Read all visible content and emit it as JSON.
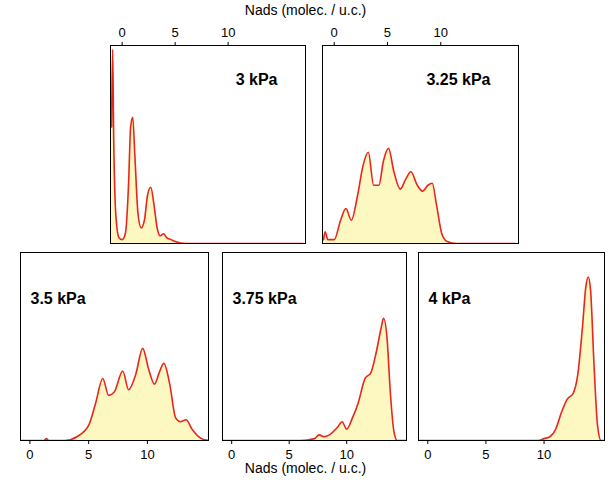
{
  "chart_data": [
    {
      "type": "area",
      "title": "3 kPa",
      "xlabel": "Nads (molec. / u.c.)",
      "x": [
        -1,
        -0.9,
        -0.8,
        -0.6,
        -0.3,
        0,
        0.3,
        0.6,
        0.8,
        1.0,
        1.2,
        1.5,
        1.8,
        2.1,
        2.4,
        2.7,
        3.0,
        3.3,
        3.6,
        3.9,
        4.2,
        4.6,
        5,
        6,
        8,
        17
      ],
      "values": [
        0.6,
        1.0,
        0.55,
        0.15,
        0.03,
        0.02,
        0.05,
        0.3,
        0.6,
        0.65,
        0.45,
        0.15,
        0.08,
        0.12,
        0.25,
        0.29,
        0.2,
        0.08,
        0.04,
        0.05,
        0.03,
        0.02,
        0.01,
        0,
        0,
        0
      ],
      "xlim": [
        -1.1,
        17.3
      ],
      "xticks": [
        0,
        5,
        10
      ],
      "ylim": [
        0,
        1.02
      ],
      "tick_labels": "x",
      "colors": [
        "#e8261c",
        "#fdf8c2"
      ]
    },
    {
      "type": "area",
      "title": "3.25 kPa",
      "x": [
        -1,
        -0.85,
        -0.6,
        0,
        0.6,
        1.1,
        1.6,
        2.2,
        2.7,
        3.2,
        3.7,
        4.2,
        4.6,
        5.1,
        5.6,
        6.2,
        6.7,
        7.2,
        7.8,
        8.3,
        8.8,
        9.2,
        9.6,
        10.1,
        10.6,
        11.5,
        17
      ],
      "values": [
        0.02,
        0.06,
        0.02,
        0.02,
        0.12,
        0.18,
        0.12,
        0.25,
        0.4,
        0.47,
        0.3,
        0.3,
        0.42,
        0.49,
        0.37,
        0.28,
        0.33,
        0.37,
        0.3,
        0.27,
        0.3,
        0.31,
        0.2,
        0.05,
        0.01,
        0,
        0
      ],
      "xlim": [
        -1.1,
        17.3
      ],
      "xticks": [
        0,
        5,
        10
      ],
      "ylim": [
        0,
        1.02
      ],
      "tick_labels": "x",
      "colors": [
        "#e8261c",
        "#fdf8c2"
      ]
    },
    {
      "type": "area",
      "title": "3.5 kPa",
      "xlabel": "Nads (molec. / u.c.)",
      "x": [
        -0.8,
        1.2,
        1.4,
        1.6,
        3,
        4,
        5,
        5.6,
        6.2,
        6.7,
        7.2,
        7.9,
        8.4,
        9.0,
        9.6,
        10.1,
        10.6,
        11.0,
        11.4,
        11.9,
        12.4,
        12.8,
        13.3,
        13.8,
        14.6,
        15.2
      ],
      "values": [
        0,
        0,
        0.01,
        0,
        0,
        0.02,
        0.08,
        0.2,
        0.33,
        0.24,
        0.26,
        0.37,
        0.27,
        0.35,
        0.49,
        0.38,
        0.3,
        0.36,
        0.41,
        0.3,
        0.12,
        0.1,
        0.11,
        0.06,
        0.01,
        0
      ],
      "xlim": [
        -0.8,
        15.2
      ],
      "xticks": [
        0,
        5,
        10
      ],
      "ylim": [
        0,
        1
      ],
      "tick_labels": "x",
      "colors": [
        "#e8261c",
        "#fdf8c2"
      ]
    },
    {
      "type": "area",
      "title": "3.75 kPa",
      "x": [
        -0.8,
        6,
        7.2,
        7.6,
        8.0,
        8.5,
        9.2,
        9.6,
        10.0,
        10.5,
        11,
        11.6,
        12.1,
        12.5,
        13.0,
        13.2,
        13.5,
        13.8,
        14.1,
        14.4,
        15.2
      ],
      "values": [
        0,
        0,
        0.01,
        0.03,
        0.02,
        0.03,
        0.07,
        0.1,
        0.06,
        0.12,
        0.2,
        0.33,
        0.36,
        0.45,
        0.6,
        0.65,
        0.55,
        0.25,
        0.05,
        0,
        0
      ],
      "xlim": [
        -0.8,
        15.2
      ],
      "xticks": [
        0,
        5,
        10
      ],
      "ylim": [
        0,
        1
      ],
      "tick_labels": "x",
      "colors": [
        "#e8261c",
        "#fdf8c2"
      ]
    },
    {
      "type": "area",
      "title": "4 kPa",
      "x": [
        -0.8,
        9.5,
        10,
        10.5,
        11,
        11.5,
        12,
        12.5,
        12.9,
        13.3,
        13.6,
        13.8,
        14.0,
        14.3,
        14.6,
        14.9,
        15.2
      ],
      "values": [
        0,
        0,
        0.01,
        0.02,
        0.06,
        0.15,
        0.22,
        0.25,
        0.35,
        0.6,
        0.82,
        0.87,
        0.8,
        0.4,
        0.08,
        0,
        0
      ],
      "xlim": [
        -0.8,
        15.2
      ],
      "xticks": [
        0,
        5,
        10
      ],
      "ylim": [
        0,
        1
      ],
      "tick_labels": "x",
      "colors": [
        "#e8261c",
        "#fdf8c2"
      ]
    }
  ]
}
